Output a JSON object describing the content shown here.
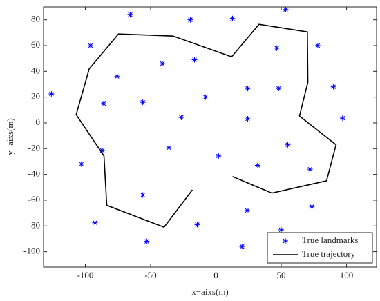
{
  "chart_data": {
    "type": "scatter",
    "x_label": "x−aixs(m)",
    "y_label": "y−aixs(m)",
    "xlim": [
      -132,
      123
    ],
    "ylim": [
      -112,
      90
    ],
    "xticks": [
      -100,
      -50,
      0,
      50,
      100
    ],
    "yticks": [
      -100,
      -80,
      -60,
      -40,
      -20,
      0,
      20,
      40,
      60,
      80
    ],
    "grid": false,
    "legend": "lower right",
    "series": [
      {
        "name": "True landmarks",
        "type": "scatter",
        "color": "#0000ff",
        "x": [
          -65.6,
          -19.6,
          12.7,
          53.4,
          -96,
          46.6,
          78,
          -75.7,
          -41,
          -16.4,
          -126,
          24.3,
          48,
          90,
          -86,
          -56,
          -8,
          -26.5,
          24.3,
          97,
          -87,
          -36,
          2,
          55,
          -103,
          32,
          72,
          -56,
          73.5,
          24,
          -92.6,
          -14.3,
          -53,
          50,
          20
        ],
        "values": [
          84,
          80,
          81,
          88,
          60,
          58,
          60,
          36,
          46,
          49,
          22.5,
          26.7,
          26.7,
          28,
          15,
          16,
          20,
          4.3,
          3.2,
          3.7,
          -21.4,
          -19.3,
          -25.7,
          -17,
          -32,
          -33,
          -36,
          -56,
          -65,
          -68,
          -77.5,
          -79,
          -92,
          -83,
          -96
        ]
      },
      {
        "name": "True trajectory",
        "type": "line",
        "color": "#000000",
        "x": [
          -18,
          -39.7,
          -83.6,
          -85.7,
          -107,
          -97,
          -74.6,
          -32.8,
          12,
          33,
          70,
          70.4,
          64,
          92,
          84.7,
          42.9,
          12.7
        ],
        "values": [
          -52,
          -81,
          -64,
          -25.7,
          6.4,
          42,
          69,
          67.4,
          51.3,
          76.5,
          70.6,
          31.6,
          5.3,
          -17,
          -45,
          -54.5,
          -41.7
        ]
      }
    ]
  }
}
